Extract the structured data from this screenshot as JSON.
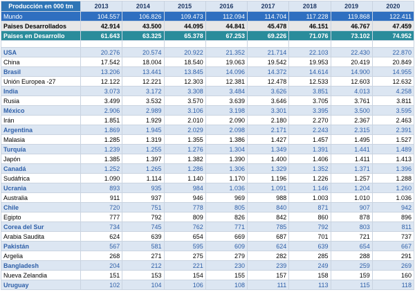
{
  "table": {
    "header": {
      "label": "Producción en 000 tm",
      "years": [
        "2013",
        "2014",
        "2015",
        "2016",
        "2017",
        "2018",
        "2019",
        "2020"
      ]
    },
    "summary": [
      {
        "name": "Mundo",
        "values": [
          "104.557",
          "106.826",
          "109.473",
          "112.094",
          "114.704",
          "117.228",
          "119.868",
          "122.411"
        ]
      },
      {
        "name": "Paises Desarrollados",
        "values": [
          "42.914",
          "43.500",
          "44.095",
          "44.841",
          "45.478",
          "46.151",
          "46.767",
          "47.459"
        ]
      },
      {
        "name": "Paises en Desarrollo",
        "values": [
          "61.643",
          "63.325",
          "65.378",
          "67.253",
          "69.226",
          "71.076",
          "73.102",
          "74.952"
        ]
      }
    ],
    "countries": [
      {
        "name": "USA",
        "values": [
          "20.276",
          "20.574",
          "20.922",
          "21.352",
          "21.714",
          "22.103",
          "22.430",
          "22.870"
        ]
      },
      {
        "name": "China",
        "values": [
          "17.542",
          "18.004",
          "18.540",
          "19.063",
          "19.542",
          "19.953",
          "20.419",
          "20.849"
        ]
      },
      {
        "name": "Brasil",
        "values": [
          "13.206",
          "13.441",
          "13.845",
          "14.096",
          "14.372",
          "14.614",
          "14.900",
          "14.955"
        ]
      },
      {
        "name": "Unión Europea -27",
        "values": [
          "12.122",
          "12.221",
          "12.303",
          "12.381",
          "12.478",
          "12.533",
          "12.603",
          "12.632"
        ]
      },
      {
        "name": "India",
        "values": [
          "3.073",
          "3.172",
          "3.308",
          "3.484",
          "3.626",
          "3.851",
          "4.013",
          "4.258"
        ]
      },
      {
        "name": "Rusia",
        "values": [
          "3.499",
          "3.532",
          "3.570",
          "3.639",
          "3.646",
          "3.705",
          "3.761",
          "3.811"
        ]
      },
      {
        "name": "México",
        "values": [
          "2.906",
          "2.989",
          "3.106",
          "3.198",
          "3.301",
          "3.395",
          "3.500",
          "3.595"
        ]
      },
      {
        "name": "Irán",
        "values": [
          "1.851",
          "1.929",
          "2.010",
          "2.090",
          "2.180",
          "2.270",
          "2.367",
          "2.463"
        ]
      },
      {
        "name": "Argentina",
        "values": [
          "1.869",
          "1.945",
          "2.029",
          "2.098",
          "2.171",
          "2.243",
          "2.315",
          "2.391"
        ]
      },
      {
        "name": "Malasia",
        "values": [
          "1.285",
          "1.319",
          "1.355",
          "1.386",
          "1.427",
          "1.457",
          "1.495",
          "1.527"
        ]
      },
      {
        "name": "Turquía",
        "values": [
          "1.239",
          "1.255",
          "1.276",
          "1.304",
          "1.349",
          "1.391",
          "1.441",
          "1.489"
        ]
      },
      {
        "name": "Japón",
        "values": [
          "1.385",
          "1.397",
          "1.382",
          "1.390",
          "1.400",
          "1.406",
          "1.411",
          "1.413"
        ]
      },
      {
        "name": "Canadá",
        "values": [
          "1.252",
          "1.265",
          "1.286",
          "1.306",
          "1.329",
          "1.352",
          "1.371",
          "1.396"
        ]
      },
      {
        "name": "Sudáfrica",
        "values": [
          "1.090",
          "1.114",
          "1.140",
          "1.170",
          "1.196",
          "1.226",
          "1.257",
          "1.288"
        ]
      },
      {
        "name": "Ucrania",
        "values": [
          "893",
          "935",
          "984",
          "1.036",
          "1.091",
          "1.146",
          "1.204",
          "1.260"
        ]
      },
      {
        "name": "Australia",
        "values": [
          "911",
          "937",
          "946",
          "969",
          "988",
          "1.003",
          "1.010",
          "1.036"
        ]
      },
      {
        "name": "Chile",
        "values": [
          "720",
          "751",
          "778",
          "805",
          "840",
          "871",
          "907",
          "942"
        ]
      },
      {
        "name": "Egipto",
        "values": [
          "777",
          "792",
          "809",
          "826",
          "842",
          "860",
          "878",
          "896"
        ]
      },
      {
        "name": "Corea del Sur",
        "values": [
          "734",
          "745",
          "762",
          "771",
          "785",
          "792",
          "803",
          "811"
        ]
      },
      {
        "name": "Arabia Saudita",
        "values": [
          "624",
          "639",
          "654",
          "669",
          "687",
          "701",
          "721",
          "737"
        ]
      },
      {
        "name": "Pakistán",
        "values": [
          "567",
          "581",
          "595",
          "609",
          "624",
          "639",
          "654",
          "667"
        ]
      },
      {
        "name": "Argelia",
        "values": [
          "268",
          "271",
          "275",
          "279",
          "282",
          "285",
          "288",
          "291"
        ]
      },
      {
        "name": "Bangladesh",
        "values": [
          "204",
          "212",
          "221",
          "230",
          "239",
          "249",
          "259",
          "269"
        ]
      },
      {
        "name": "Nueva Zelandia",
        "values": [
          "151",
          "153",
          "154",
          "155",
          "157",
          "158",
          "159",
          "160"
        ]
      },
      {
        "name": "Uruguay",
        "values": [
          "102",
          "104",
          "106",
          "108",
          "111",
          "113",
          "115",
          "118"
        ]
      }
    ]
  }
}
